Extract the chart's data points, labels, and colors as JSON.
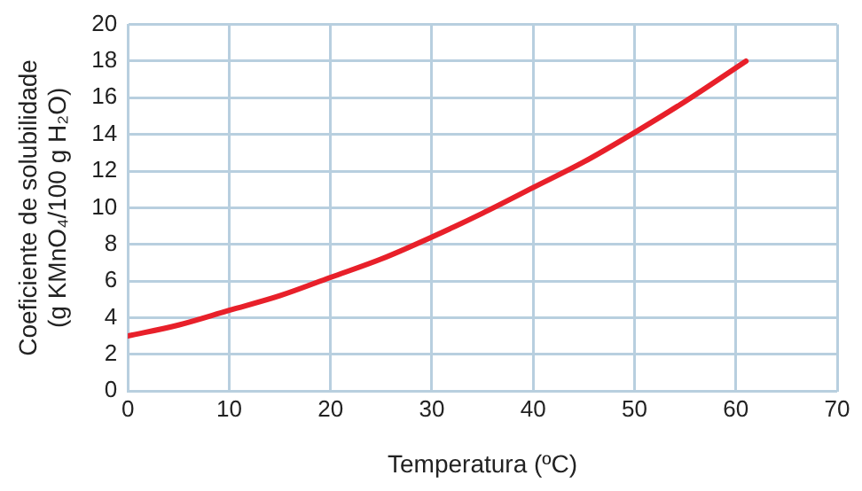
{
  "chart_data": {
    "type": "line",
    "xlabel": "Temperatura (ºC)",
    "ylabel": "Coeficiente de solubilidade\n(g KMnO₄/100 g H₂O)",
    "x": [
      0,
      5,
      10,
      15,
      20,
      25,
      30,
      35,
      40,
      45,
      50,
      55,
      61
    ],
    "series": [
      {
        "color": "#e8202a",
        "values": [
          3,
          3.6,
          4.4,
          5.2,
          6.2,
          7.2,
          8.4,
          9.7,
          11.1,
          12.5,
          14.1,
          15.8,
          18
        ]
      }
    ],
    "xlim": [
      0,
      70
    ],
    "xticks": [
      0,
      10,
      20,
      30,
      40,
      50,
      60,
      70
    ],
    "ylim": [
      0,
      20
    ],
    "yticks": [
      0,
      2,
      4,
      6,
      8,
      10,
      12,
      14,
      16,
      18,
      20
    ],
    "grid": true,
    "legend": false,
    "marker": "none",
    "line_style": "solid"
  }
}
